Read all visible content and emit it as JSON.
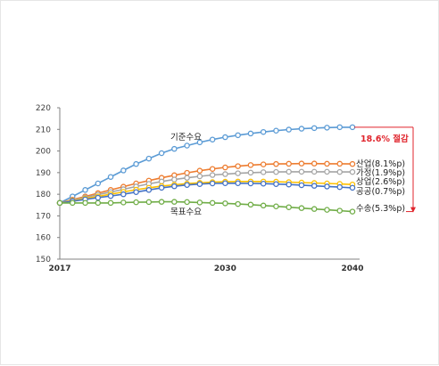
{
  "chart_data": {
    "type": "line",
    "title": "",
    "xlabel": "",
    "ylabel": "",
    "xlim": [
      2017,
      2040
    ],
    "ylim": [
      150,
      220
    ],
    "yticks": [
      150,
      160,
      170,
      180,
      190,
      200,
      210,
      220
    ],
    "xticks": [
      2017,
      2030,
      2040
    ],
    "grid": false,
    "x": [
      2017,
      2018,
      2019,
      2020,
      2021,
      2022,
      2023,
      2024,
      2025,
      2026,
      2027,
      2028,
      2029,
      2030,
      2031,
      2032,
      2033,
      2034,
      2035,
      2036,
      2037,
      2038,
      2039,
      2040
    ],
    "series": [
      {
        "name": "기준수요",
        "color": "#5b9bd5",
        "values": [
          176,
          179,
          182,
          185,
          188,
          191,
          194,
          196.5,
          199,
          201,
          202.5,
          204,
          205.3,
          206.4,
          207.3,
          208.1,
          208.8,
          209.4,
          209.9,
          210.3,
          210.6,
          210.8,
          211,
          211
        ]
      },
      {
        "name": "산업(8.1%p)",
        "color": "#ed7d31",
        "values": [
          176,
          177.5,
          179,
          180.5,
          182,
          183.5,
          185,
          186.3,
          187.6,
          188.8,
          189.9,
          190.9,
          191.7,
          192.4,
          193,
          193.5,
          193.8,
          194,
          194.1,
          194.2,
          194.2,
          194.1,
          194.1,
          194
        ]
      },
      {
        "name": "가정(1.9%p)",
        "color": "#a5a5a5",
        "values": [
          176,
          177.2,
          178.5,
          179.8,
          181,
          182.3,
          183.6,
          184.8,
          185.9,
          186.8,
          187.6,
          188.3,
          188.9,
          189.3,
          189.7,
          190,
          190.2,
          190.3,
          190.4,
          190.4,
          190.4,
          190.4,
          190.3,
          190.3
        ]
      },
      {
        "name": "상업(2.6%p)",
        "color": "#ffc000",
        "values": [
          176,
          177,
          178,
          179,
          180,
          181.1,
          182.1,
          183,
          183.8,
          184.4,
          184.9,
          185.3,
          185.6,
          185.8,
          185.9,
          185.9,
          185.9,
          185.8,
          185.6,
          185.4,
          185.2,
          185,
          184.8,
          184.5
        ]
      },
      {
        "name": "공공(0.7%p)",
        "color": "#4472c4",
        "values": [
          176,
          176.8,
          177.6,
          178.4,
          179.2,
          180,
          181,
          182,
          183,
          183.7,
          184.3,
          184.7,
          185,
          185.1,
          185.1,
          185,
          184.9,
          184.7,
          184.5,
          184.2,
          183.9,
          183.6,
          183.3,
          183
        ]
      },
      {
        "name": "수송(5.3%p)",
        "color": "#70ad47",
        "values": [
          176,
          176,
          176,
          176,
          176,
          176.2,
          176.3,
          176.4,
          176.5,
          176.5,
          176.4,
          176.2,
          176,
          175.8,
          175.5,
          175.2,
          174.8,
          174.4,
          174,
          173.6,
          173.2,
          172.8,
          172.4,
          172
        ]
      }
    ],
    "annotations": {
      "target_label": "목표수요",
      "reduction_label": "18.6% 절감",
      "reduction_color": "#e0242c"
    }
  }
}
